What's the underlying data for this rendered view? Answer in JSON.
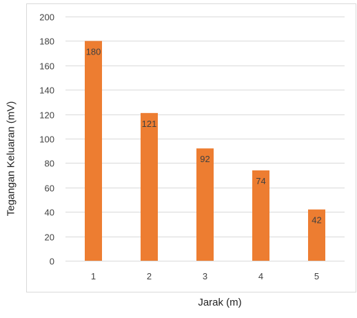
{
  "chart_data": {
    "type": "bar",
    "categories": [
      "1",
      "2",
      "3",
      "4",
      "5"
    ],
    "values": [
      180,
      121,
      92,
      74,
      42
    ],
    "data_labels": [
      "180",
      "121",
      "92",
      "74",
      "42"
    ],
    "xlabel": "Jarak (m)",
    "ylabel": "Tegangan Keluaran (mV)",
    "ylim": [
      0,
      200
    ],
    "yticks": [
      0,
      20,
      40,
      60,
      80,
      100,
      120,
      140,
      160,
      180,
      200
    ],
    "grid": true,
    "legend": "none",
    "bar_color": "#ED7D31",
    "grid_color": "#D9D9D9",
    "text_color": "#404040"
  }
}
